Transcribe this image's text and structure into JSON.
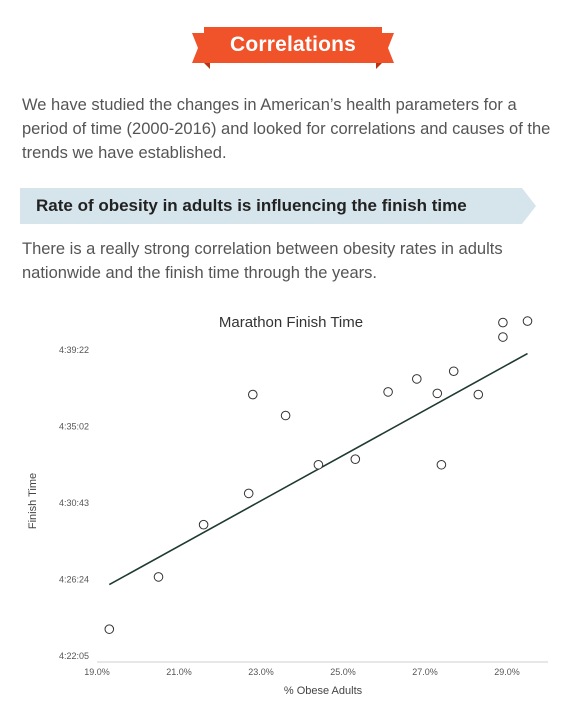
{
  "banner": {
    "title": "Correlations"
  },
  "intro": {
    "text": "We have studied the changes in American’s health parameters for a period of time (2000-2016) and looked for correlations and causes of the trends we have established."
  },
  "section": {
    "title": "Rate of obesity in adults is influencing the finish time",
    "text": "There is a really strong correlation between obesity rates in adults nationwide and the finish time through the years."
  },
  "colors": {
    "banner": "#f0522a",
    "banner_dark": "#b83412",
    "section_bar": "#d6e5ec",
    "trend_line": "#1f3b2f"
  },
  "chart_data": {
    "type": "scatter",
    "title": "Marathon Finish Time",
    "xlabel": "% Obese Adults",
    "ylabel": "Finish Time",
    "xlim": [
      19.0,
      30.0
    ],
    "ylim_seconds": [
      15725,
      16762
    ],
    "x_ticks": [
      "19.0%",
      "21.0%",
      "23.0%",
      "25.0%",
      "27.0%",
      "29.0%"
    ],
    "x_tick_values": [
      19.0,
      21.0,
      23.0,
      25.0,
      27.0,
      29.0
    ],
    "y_ticks": [
      "4:22:05",
      "4:26:24",
      "4:30:43",
      "4:35:02",
      "4:39:22"
    ],
    "y_tick_values": [
      15725,
      15984,
      16243,
      16502,
      16762
    ],
    "points": [
      {
        "x": 19.3,
        "y": 15816
      },
      {
        "x": 20.5,
        "y": 15993
      },
      {
        "x": 21.6,
        "y": 16170
      },
      {
        "x": 22.7,
        "y": 16276
      },
      {
        "x": 22.8,
        "y": 16611
      },
      {
        "x": 23.6,
        "y": 16540
      },
      {
        "x": 24.4,
        "y": 16373
      },
      {
        "x": 25.3,
        "y": 16392
      },
      {
        "x": 26.1,
        "y": 16620
      },
      {
        "x": 26.8,
        "y": 16664
      },
      {
        "x": 27.3,
        "y": 16615
      },
      {
        "x": 27.4,
        "y": 16373
      },
      {
        "x": 27.7,
        "y": 16690
      },
      {
        "x": 28.3,
        "y": 16611
      },
      {
        "x": 28.9,
        "y": 16806
      },
      {
        "x": 28.9,
        "y": 16855
      },
      {
        "x": 29.5,
        "y": 16860
      }
    ],
    "trendline": {
      "x": [
        19.3,
        29.5
      ],
      "y": [
        15967,
        16750
      ]
    }
  }
}
